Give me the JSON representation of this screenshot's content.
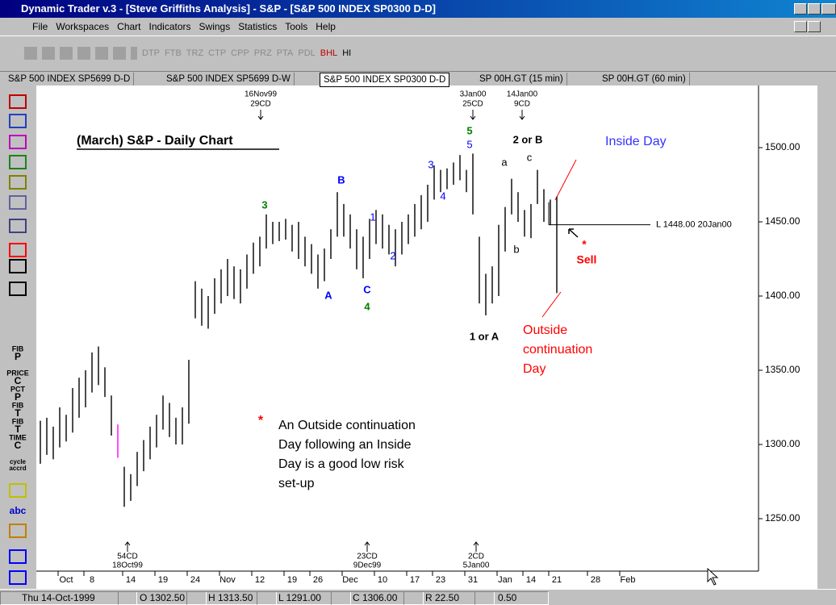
{
  "window": {
    "title": "Dynamic Trader v.3 - [Steve Griffiths Analysis] - S&P - [S&P 500 INDEX SP0300 D-D]",
    "menu": [
      "File",
      "Workspaces",
      "Chart",
      "Indicators",
      "Swings",
      "Statistics",
      "Tools",
      "Help"
    ],
    "toolbar": [
      "DTP",
      "FTB",
      "TRZ",
      "CTP",
      "CPP",
      "PRZ",
      "PTA",
      "PDL",
      "BHL",
      "HI"
    ],
    "tabs": [
      "S&P 500 INDEX SP5699 D-D",
      "S&P 500 INDEX SP5699 D-W",
      "S&P 500 INDEX SP0300 D-D",
      "SP 00H.GT (15 min)",
      "SP 00H.GT (60 min)"
    ],
    "left_tools": [
      "FIB",
      "P",
      "PRICE",
      "C",
      "PCT",
      "P",
      "FIB",
      "T",
      "FIB",
      "T",
      "TIME",
      "C",
      "cycle",
      "accrd",
      "abc"
    ],
    "status": [
      "Thu 14-Oct-1999",
      "O 1302.50",
      "H 1313.50",
      "L 1291.00",
      "C 1306.00",
      "R 22.50",
      "0.50"
    ]
  },
  "chart": {
    "type": "ohlc",
    "title": "(March) S&P - Daily Chart",
    "color": "#000000",
    "highlight": 12,
    "highlight_color": "#ff00ff",
    "x": [
      0,
      1,
      2,
      3,
      4,
      5,
      6,
      7,
      8,
      9,
      10,
      11,
      12,
      13,
      14,
      15,
      16,
      17,
      18,
      19,
      20,
      21,
      22,
      23,
      24,
      25,
      26,
      27,
      28,
      29,
      30,
      31,
      32,
      33,
      34,
      35,
      36,
      37,
      38,
      39,
      40,
      41,
      42,
      43,
      44,
      45,
      46,
      47,
      48,
      49,
      50,
      51,
      52,
      53,
      54,
      55,
      56,
      57,
      58,
      59,
      60,
      61,
      62,
      63,
      64,
      65,
      66,
      67,
      68,
      69,
      70,
      71,
      72,
      73,
      74,
      75,
      76,
      77,
      78,
      79,
      80
    ],
    "high": [
      1316,
      1318,
      1312,
      1325,
      1320,
      1338,
      1345,
      1350,
      1362,
      1366,
      1352,
      1333,
      1313.5,
      1285,
      1280,
      1295,
      1303,
      1312,
      1320,
      1333,
      1328,
      1318,
      1325,
      1357,
      1410,
      1405,
      1400,
      1412,
      1418,
      1425,
      1420,
      1418,
      1428,
      1436,
      1440,
      1455,
      1450,
      1450,
      1452,
      1448,
      1450,
      1440,
      1435,
      1428,
      1432,
      1445,
      1470,
      1462,
      1455,
      1445,
      1440,
      1452,
      1458,
      1455,
      1448,
      1445,
      1450,
      1455,
      1462,
      1468,
      1475,
      1488,
      1485,
      1486,
      1490,
      1495,
      1485,
      1496,
      1440,
      1415,
      1420,
      1448,
      1460,
      1479,
      1470,
      1458,
      1462,
      1485,
      1472,
      1465,
      1467
    ],
    "low": [
      1287,
      1293,
      1290,
      1298,
      1302,
      1308,
      1318,
      1325,
      1335,
      1340,
      1332,
      1306,
      1291,
      1258,
      1262,
      1272,
      1282,
      1290,
      1298,
      1310,
      1305,
      1300,
      1300,
      1314,
      1385,
      1380,
      1378,
      1388,
      1395,
      1400,
      1398,
      1395,
      1405,
      1415,
      1420,
      1432,
      1435,
      1437,
      1438,
      1430,
      1425,
      1420,
      1415,
      1405,
      1410,
      1425,
      1440,
      1440,
      1432,
      1418,
      1412,
      1425,
      1435,
      1432,
      1428,
      1420,
      1428,
      1435,
      1440,
      1445,
      1450,
      1465,
      1470,
      1472,
      1475,
      1478,
      1470,
      1455,
      1395,
      1387,
      1395,
      1400,
      1430,
      1455,
      1450,
      1440,
      1439,
      1462,
      1450,
      1448,
      1402
    ],
    "xlim": [
      -0.625,
      111.25
    ],
    "ylim": [
      1214.67,
      1540.76
    ],
    "xticks": [
      {
        "value": 4,
        "label": "Oct"
      },
      8,
      14,
      19,
      24,
      {
        "value": 29,
        "label": "Nov"
      },
      {
        "value": 34,
        "label": "12"
      },
      {
        "value": 39,
        "label": "19"
      },
      {
        "value": 43,
        "label": "26"
      },
      {
        "value": 48,
        "label": "Dec"
      },
      {
        "value": 53,
        "label": "10"
      },
      {
        "value": 58,
        "label": "17"
      },
      {
        "value": 62,
        "label": "23"
      },
      {
        "value": 67,
        "label": "31"
      },
      {
        "value": 72,
        "label": "Jan"
      },
      {
        "value": 76,
        "label": "14"
      },
      {
        "value": 80,
        "label": "21"
      },
      {
        "value": 86,
        "label": "28"
      },
      {
        "value": 91,
        "label": "Feb"
      }
    ],
    "yticks": [
      {
        "value": 1250,
        "label": "1250.00"
      },
      {
        "value": 1300,
        "label": "1300.00"
      },
      {
        "value": 1350,
        "label": "1350.00"
      },
      {
        "value": 1400,
        "label": "1400.00"
      },
      {
        "value": 1450,
        "label": "1450.00"
      },
      {
        "value": 1500,
        "label": "1500.00"
      }
    ],
    "level": {
      "value": 1448,
      "label": "L 1448.00 20Jan00"
    },
    "annotations": [
      {
        "text": "3",
        "color": "#008000"
      },
      {
        "text": "B",
        "color": "#0000ff"
      },
      {
        "text": "1",
        "color": "#0000ff"
      },
      {
        "text": "2",
        "color": "#0000ff"
      },
      {
        "text": "A",
        "color": "#0000ff"
      },
      {
        "text": "C",
        "color": "#0000ff"
      },
      {
        "text": "4",
        "color": "#008000"
      },
      {
        "text": "3",
        "color": "#0000ff"
      },
      {
        "text": "4",
        "color": "#0000ff"
      },
      {
        "text": "5",
        "color": "#008000"
      },
      {
        "text": "5",
        "color": "#0000ff"
      },
      {
        "text": "a",
        "color": "#000000"
      },
      {
        "text": "c",
        "color": "#000000"
      },
      {
        "text": "b",
        "color": "#000000"
      },
      {
        "text": "2 or B",
        "color": "#000000"
      },
      {
        "text": "1 or A",
        "color": "#000000"
      },
      {
        "text": "Sell",
        "color": "#ff0000"
      },
      {
        "text": "*",
        "color": "#ff0000"
      },
      {
        "text": "Inside Day",
        "color": "#3333ff"
      }
    ],
    "callout": {
      "color": "#ff0000",
      "lines": [
        "Outside",
        "continuation",
        "Day"
      ]
    },
    "note": {
      "mark": "*",
      "mark_color": "#ff0000",
      "lines": [
        "An Outside continuation",
        "Day following an Inside",
        "Day is a good low risk",
        "set-up"
      ]
    },
    "top_markers": [
      {
        "date": "16Nov99",
        "cd": "29CD"
      },
      {
        "date": "3Jan00",
        "cd": "25CD"
      },
      {
        "date": "14Jan00",
        "cd": "9CD"
      }
    ],
    "bottom_markers": [
      {
        "cd": "54CD",
        "date": "18Oct99"
      },
      {
        "cd": "23CD",
        "date": "9Dec99"
      },
      {
        "cd": "2CD",
        "date": "5Jan00"
      }
    ]
  }
}
